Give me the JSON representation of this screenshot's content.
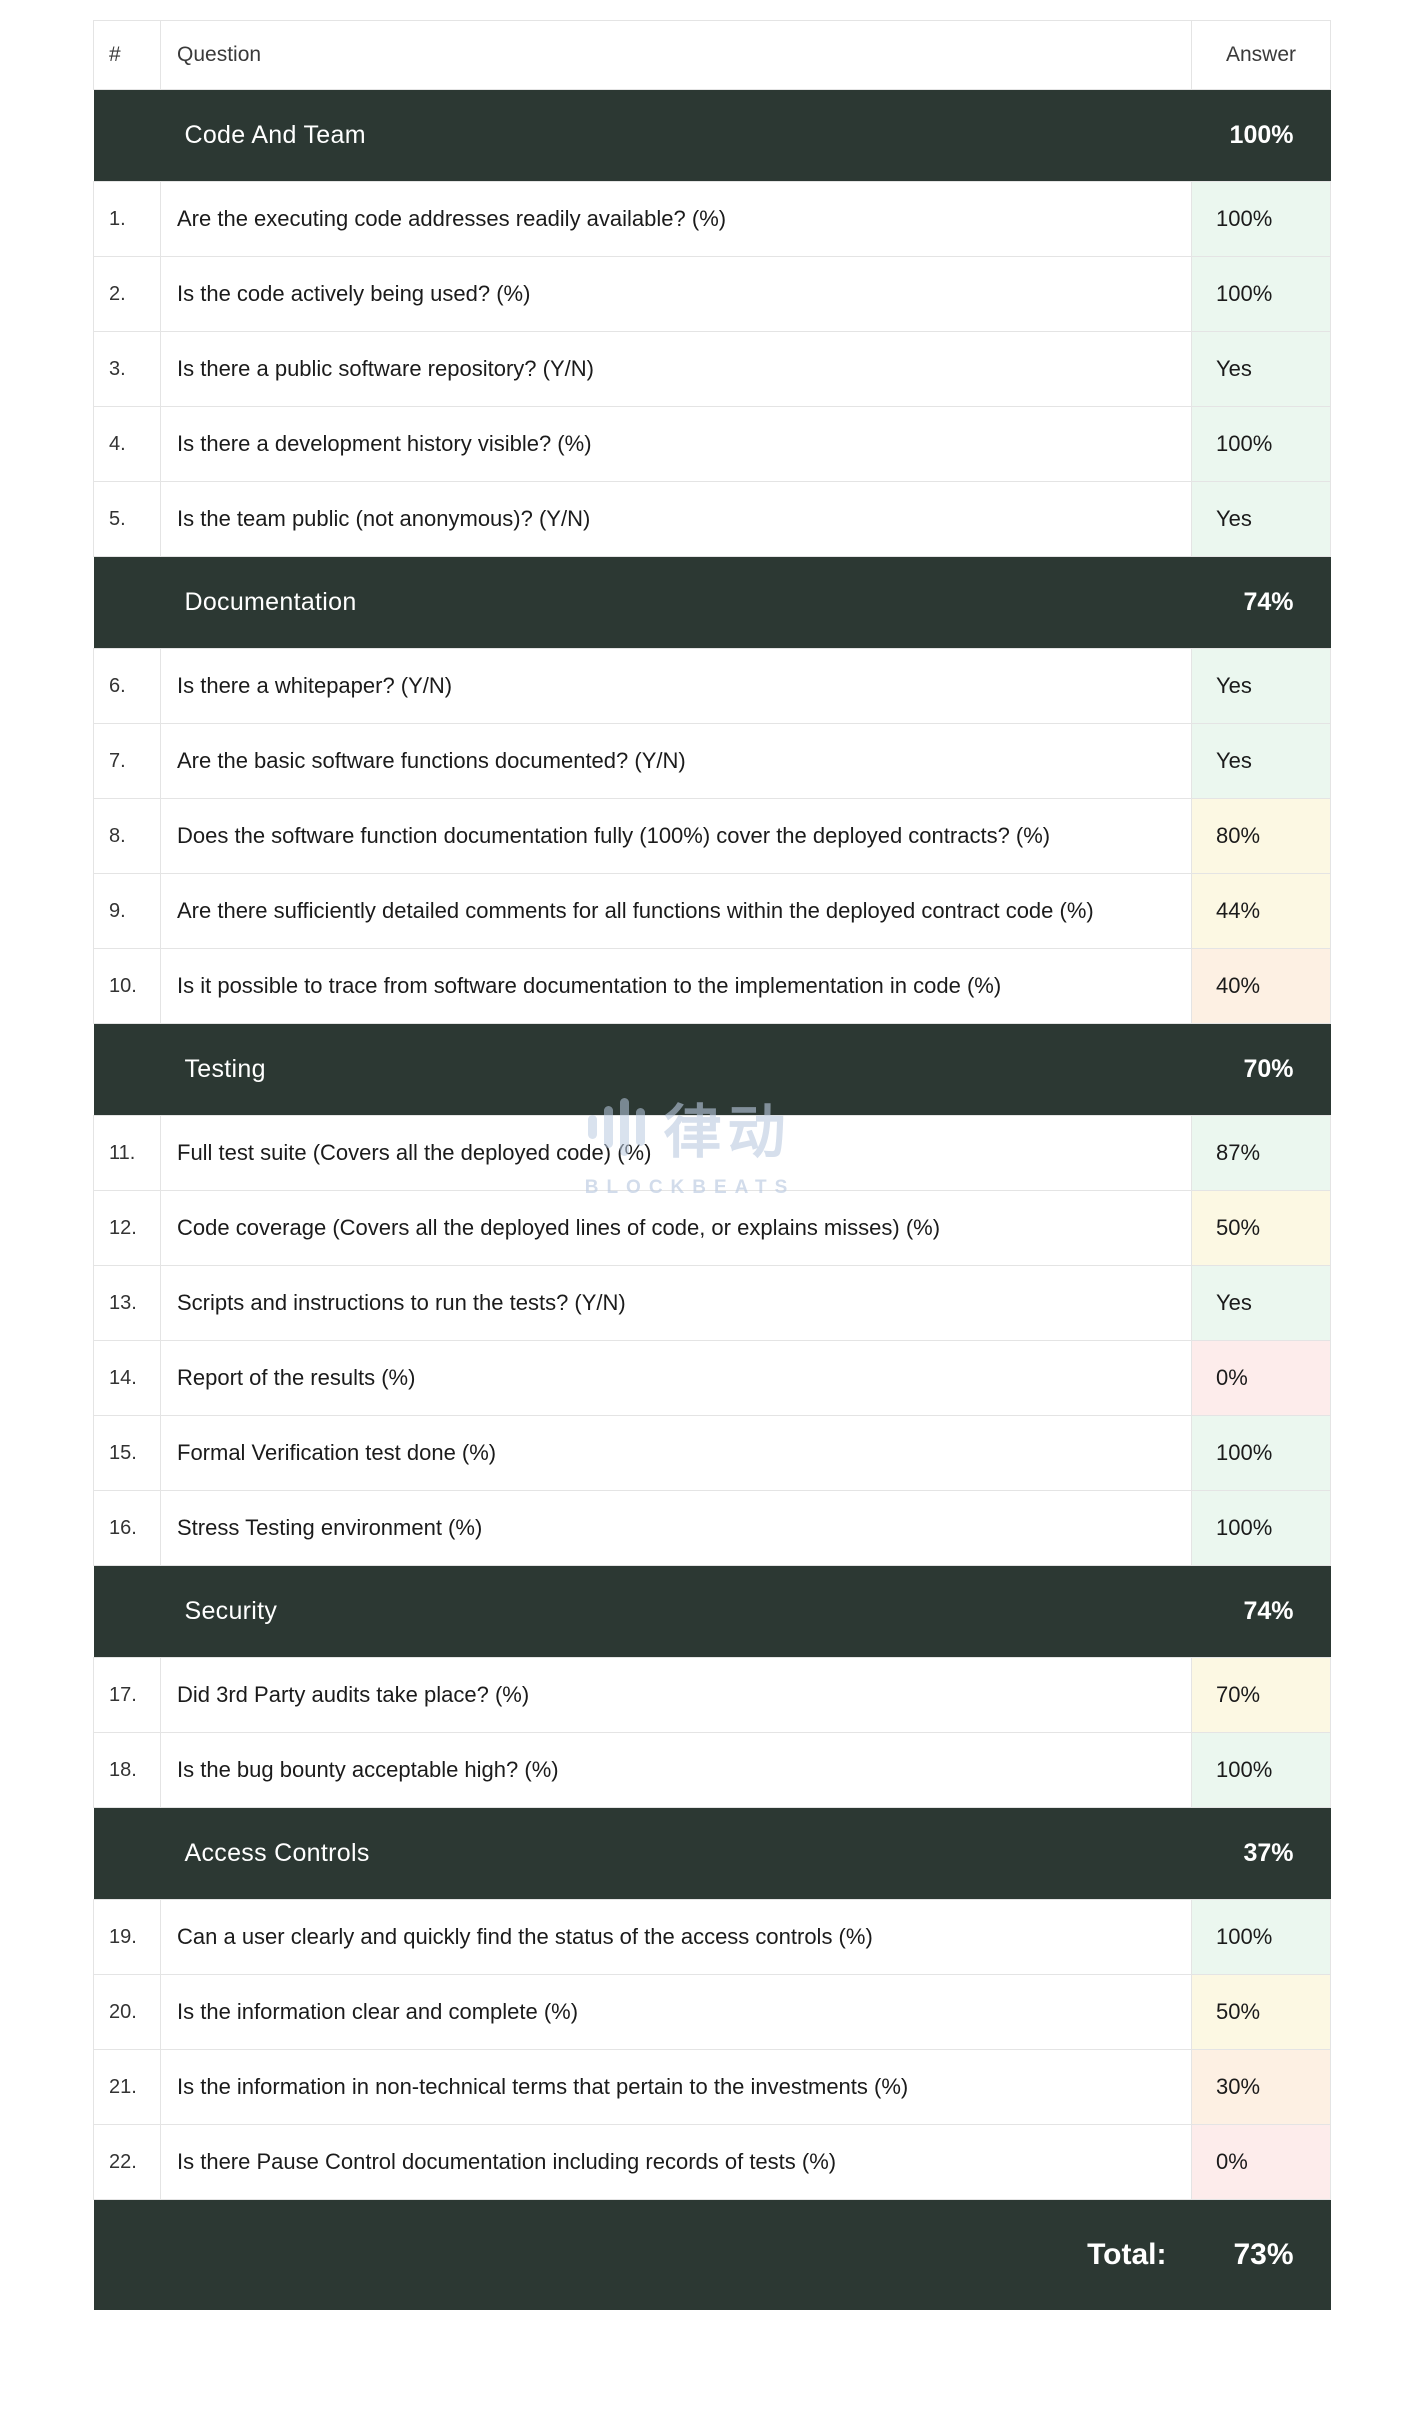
{
  "colors": {
    "section_header_bg": "#2c3833",
    "tone_green": "#ebf7ef",
    "tone_yellow": "#fcf8e3",
    "tone_orange": "#fdf0e3",
    "tone_red": "#fdeceb",
    "border": "#e4e4e4",
    "watermark": "#bccae0"
  },
  "watermark": {
    "cn": "律动",
    "en": "BLOCKBEATS"
  },
  "table": {
    "header": {
      "num": "#",
      "question": "Question",
      "answer": "Answer"
    },
    "sections": [
      {
        "title": "Code And Team",
        "score": "100%",
        "rows": [
          {
            "num": "1.",
            "question": "Are the executing code addresses readily available? (%)",
            "answer": "100%",
            "tone": "green"
          },
          {
            "num": "2.",
            "question": "Is the code actively being used? (%)",
            "answer": "100%",
            "tone": "green"
          },
          {
            "num": "3.",
            "question": "Is there a public software repository? (Y/N)",
            "answer": "Yes",
            "tone": "green"
          },
          {
            "num": "4.",
            "question": "Is there a development history visible? (%)",
            "answer": "100%",
            "tone": "green"
          },
          {
            "num": "5.",
            "question": "Is the team public (not anonymous)? (Y/N)",
            "answer": "Yes",
            "tone": "green"
          }
        ]
      },
      {
        "title": "Documentation",
        "score": "74%",
        "rows": [
          {
            "num": "6.",
            "question": "Is there a whitepaper? (Y/N)",
            "answer": "Yes",
            "tone": "green"
          },
          {
            "num": "7.",
            "question": "Are the basic software functions documented? (Y/N)",
            "answer": "Yes",
            "tone": "green"
          },
          {
            "num": "8.",
            "question": "Does the software function documentation fully (100%) cover the deployed contracts? (%)",
            "answer": "80%",
            "tone": "yellow"
          },
          {
            "num": "9.",
            "question": "Are there sufficiently detailed comments for all functions within the deployed contract code (%)",
            "answer": "44%",
            "tone": "yellow"
          },
          {
            "num": "10.",
            "question": "Is it possible to trace from software documentation to the implementation in code (%)",
            "answer": "40%",
            "tone": "orange"
          }
        ]
      },
      {
        "title": "Testing",
        "score": "70%",
        "rows": [
          {
            "num": "11.",
            "question": "Full test suite (Covers all the deployed code) (%)",
            "answer": "87%",
            "tone": "green"
          },
          {
            "num": "12.",
            "question": "Code coverage (Covers all the deployed lines of code, or explains misses) (%)",
            "answer": "50%",
            "tone": "yellow"
          },
          {
            "num": "13.",
            "question": "Scripts and instructions to run the tests? (Y/N)",
            "answer": "Yes",
            "tone": "green"
          },
          {
            "num": "14.",
            "question": "Report of the results (%)",
            "answer": "0%",
            "tone": "red"
          },
          {
            "num": "15.",
            "question": "Formal Verification test done (%)",
            "answer": "100%",
            "tone": "green"
          },
          {
            "num": "16.",
            "question": "Stress Testing environment (%)",
            "answer": "100%",
            "tone": "green"
          }
        ]
      },
      {
        "title": "Security",
        "score": "74%",
        "rows": [
          {
            "num": "17.",
            "question": "Did 3rd Party audits take place? (%)",
            "answer": "70%",
            "tone": "yellow"
          },
          {
            "num": "18.",
            "question": "Is the bug bounty acceptable high? (%)",
            "answer": "100%",
            "tone": "green"
          }
        ]
      },
      {
        "title": "Access Controls",
        "score": "37%",
        "rows": [
          {
            "num": "19.",
            "question": "Can a user clearly and quickly find the status of the access controls (%)",
            "answer": "100%",
            "tone": "green"
          },
          {
            "num": "20.",
            "question": "Is the information clear and complete (%)",
            "answer": "50%",
            "tone": "yellow"
          },
          {
            "num": "21.",
            "question": "Is the information in non-technical terms that pertain to the investments (%)",
            "answer": "30%",
            "tone": "orange"
          },
          {
            "num": "22.",
            "question": "Is there Pause Control documentation including records of tests (%)",
            "answer": "0%",
            "tone": "red"
          }
        ]
      }
    ],
    "footer": {
      "label": "Total:",
      "value": "73%"
    }
  }
}
